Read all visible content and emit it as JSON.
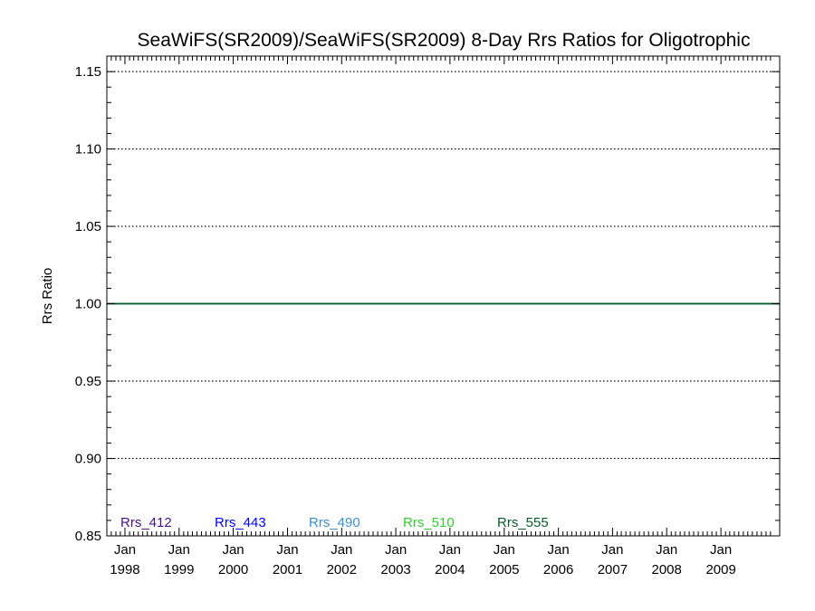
{
  "chart_data": {
    "type": "line",
    "title": "SeaWiFS(SR2009)/SeaWiFS(SR2009) 8-Day Rrs Ratios for Oligotrophic",
    "ylabel": "Rrs Ratio",
    "xlabel": "",
    "ylim": [
      0.85,
      1.16
    ],
    "xlim": [
      "1997-09-01",
      "2010-02-01"
    ],
    "grid": "dotted horizontal at labeled y ticks",
    "y_ticks": [
      {
        "value": 0.85,
        "label": "0.85"
      },
      {
        "value": 0.9,
        "label": "0.90"
      },
      {
        "value": 0.95,
        "label": "0.95"
      },
      {
        "value": 1.0,
        "label": "1.00"
      },
      {
        "value": 1.05,
        "label": "1.05"
      },
      {
        "value": 1.1,
        "label": "1.10"
      },
      {
        "value": 1.15,
        "label": "1.15"
      }
    ],
    "x_ticks": [
      {
        "date": "1998-01-01",
        "month": "Jan",
        "year": "1998"
      },
      {
        "date": "1999-01-01",
        "month": "Jan",
        "year": "1999"
      },
      {
        "date": "2000-01-01",
        "month": "Jan",
        "year": "2000"
      },
      {
        "date": "2001-01-01",
        "month": "Jan",
        "year": "2001"
      },
      {
        "date": "2002-01-01",
        "month": "Jan",
        "year": "2002"
      },
      {
        "date": "2003-01-01",
        "month": "Jan",
        "year": "2003"
      },
      {
        "date": "2004-01-01",
        "month": "Jan",
        "year": "2004"
      },
      {
        "date": "2005-01-01",
        "month": "Jan",
        "year": "2005"
      },
      {
        "date": "2006-01-01",
        "month": "Jan",
        "year": "2006"
      },
      {
        "date": "2007-01-01",
        "month": "Jan",
        "year": "2007"
      },
      {
        "date": "2008-01-01",
        "month": "Jan",
        "year": "2008"
      },
      {
        "date": "2009-01-01",
        "month": "Jan",
        "year": "2009"
      }
    ],
    "series": [
      {
        "name": "Rrs_412",
        "color": "#4b0e8a",
        "x": [
          "1997-09-01",
          "2010-02-01"
        ],
        "values": [
          1.0,
          1.0
        ]
      },
      {
        "name": "Rrs_443",
        "color": "#0000ff",
        "x": [
          "1997-09-01",
          "2010-02-01"
        ],
        "values": [
          1.0,
          1.0
        ]
      },
      {
        "name": "Rrs_490",
        "color": "#3a8fd0",
        "x": [
          "1997-09-01",
          "2010-02-01"
        ],
        "values": [
          1.0,
          1.0
        ]
      },
      {
        "name": "Rrs_510",
        "color": "#33cc33",
        "x": [
          "1997-09-01",
          "2010-02-01"
        ],
        "values": [
          1.0,
          1.0
        ]
      },
      {
        "name": "Rrs_555",
        "color": "#0a5a2a",
        "x": [
          "1997-09-01",
          "2010-02-01"
        ],
        "values": [
          1.0,
          1.0
        ]
      }
    ],
    "legend": "bottom-left, inside plot, horizontal"
  }
}
